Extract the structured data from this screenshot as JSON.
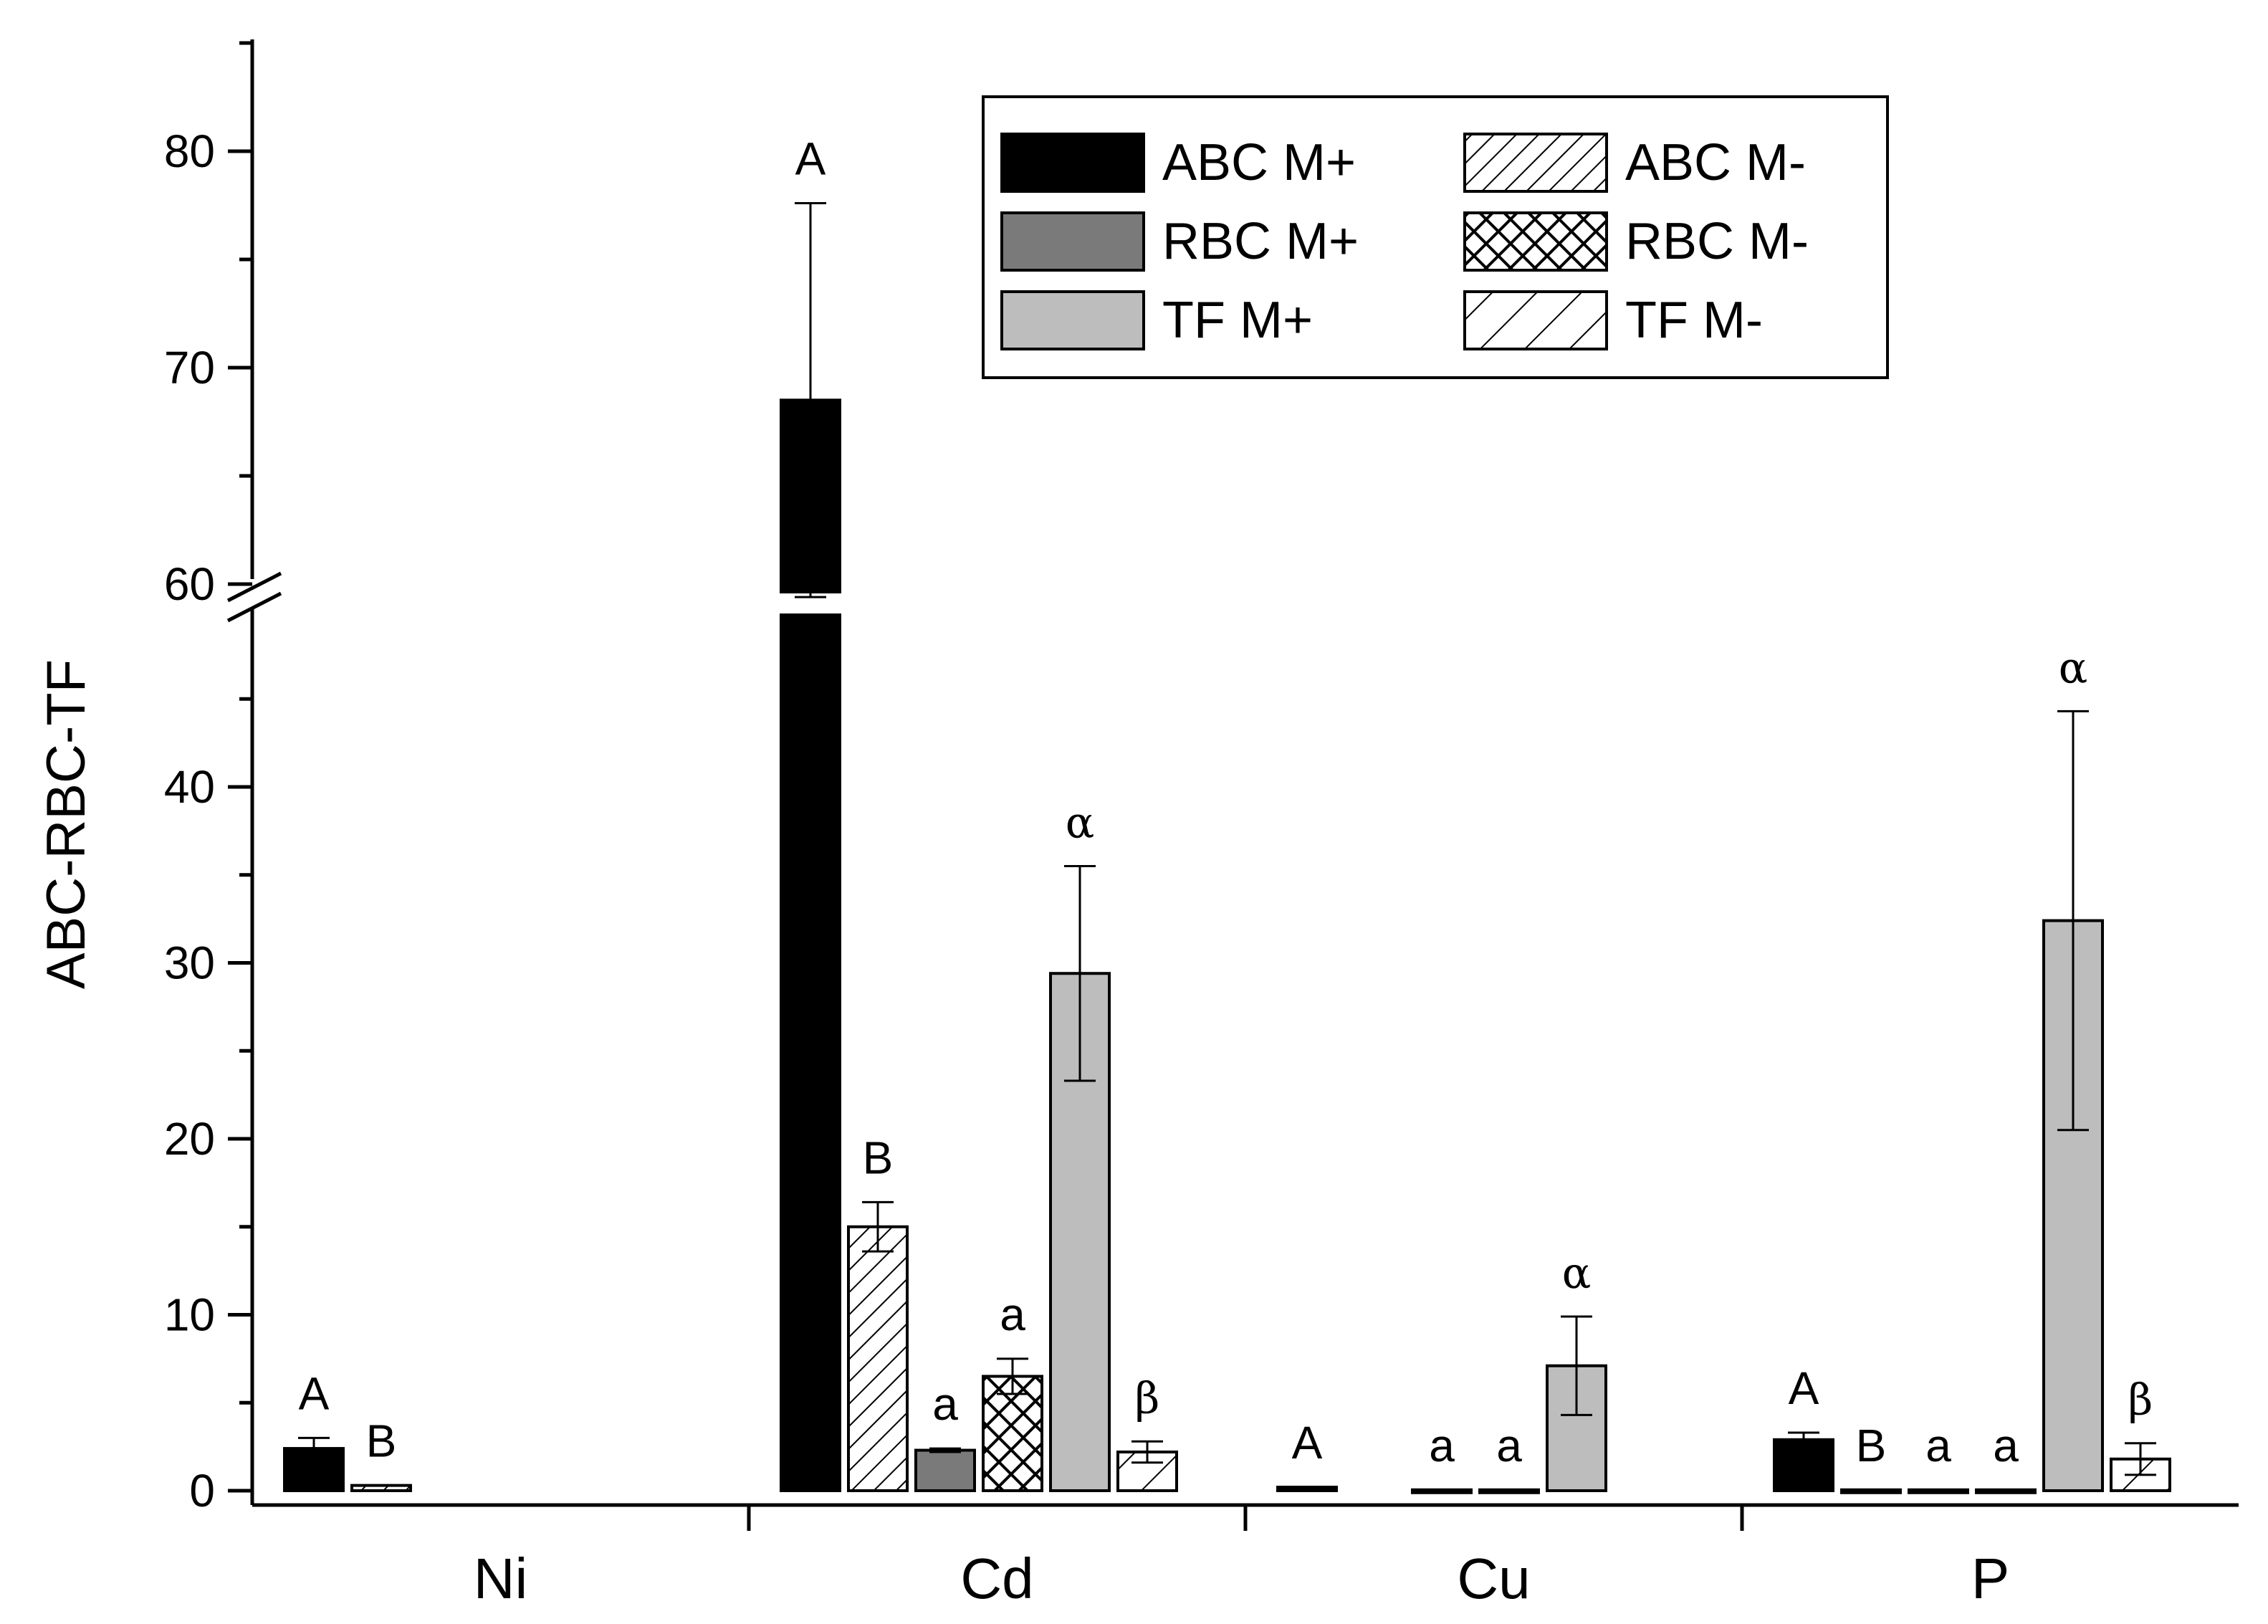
{
  "chart_data": {
    "type": "bar",
    "ylabel": "ABC-RBC-TF",
    "xlabel": "",
    "categories": [
      "Ni",
      "Cd",
      "Cu",
      "P"
    ],
    "y_axis_break": [
      48,
      60
    ],
    "ylim_lower": [
      -1.5,
      48
    ],
    "ylim_upper": [
      60,
      85
    ],
    "yticks": [
      0,
      10,
      20,
      30,
      40,
      60,
      70,
      80
    ],
    "grid": false,
    "legend_position": "top-right",
    "legend_columns": 2,
    "series": [
      {
        "name": "ABC M+",
        "fill": "#000000",
        "pattern": "solid",
        "values": [
          2.4,
          68.5,
          0.2,
          2.9
        ],
        "errors": [
          0.6,
          9.1,
          0,
          0.4
        ],
        "letters": [
          "A",
          "A",
          "A",
          "A"
        ]
      },
      {
        "name": "ABC M-",
        "fill": "#ffffff",
        "pattern": "dense-diagonal",
        "values": [
          0.3,
          15.0,
          null,
          0.05
        ],
        "errors": [
          0,
          1.4,
          null,
          0
        ],
        "letters": [
          "B",
          "B",
          "",
          "B"
        ]
      },
      {
        "name": "RBC M+",
        "fill": "#7a7a7a",
        "pattern": "solid",
        "values": [
          null,
          2.3,
          0.05,
          0.05
        ],
        "errors": [
          null,
          0.1,
          0,
          0
        ],
        "letters": [
          "",
          "a",
          "a",
          "a"
        ]
      },
      {
        "name": "RBC M-",
        "fill": "#ffffff",
        "pattern": "crosshatch",
        "values": [
          null,
          6.5,
          0.05,
          0.05
        ],
        "errors": [
          null,
          1.0,
          0,
          0
        ],
        "letters": [
          "",
          "a",
          "a",
          "a"
        ]
      },
      {
        "name": "TF M+",
        "fill": "#bdbdbd",
        "pattern": "solid",
        "values": [
          null,
          29.4,
          7.1,
          32.4
        ],
        "errors": [
          null,
          6.1,
          2.8,
          11.9
        ],
        "letters": [
          "",
          "α",
          "α",
          "α"
        ]
      },
      {
        "name": "TF M-",
        "fill": "#ffffff",
        "pattern": "sparse-diagonal",
        "values": [
          null,
          2.2,
          null,
          1.8
        ],
        "errors": [
          null,
          0.6,
          null,
          0.9
        ],
        "letters": [
          "",
          "β",
          "",
          "β"
        ]
      }
    ],
    "legend_labels": [
      "ABC M+",
      "ABC M-",
      "RBC M+",
      "RBC M-",
      "TF M+",
      "TF  M-"
    ]
  }
}
